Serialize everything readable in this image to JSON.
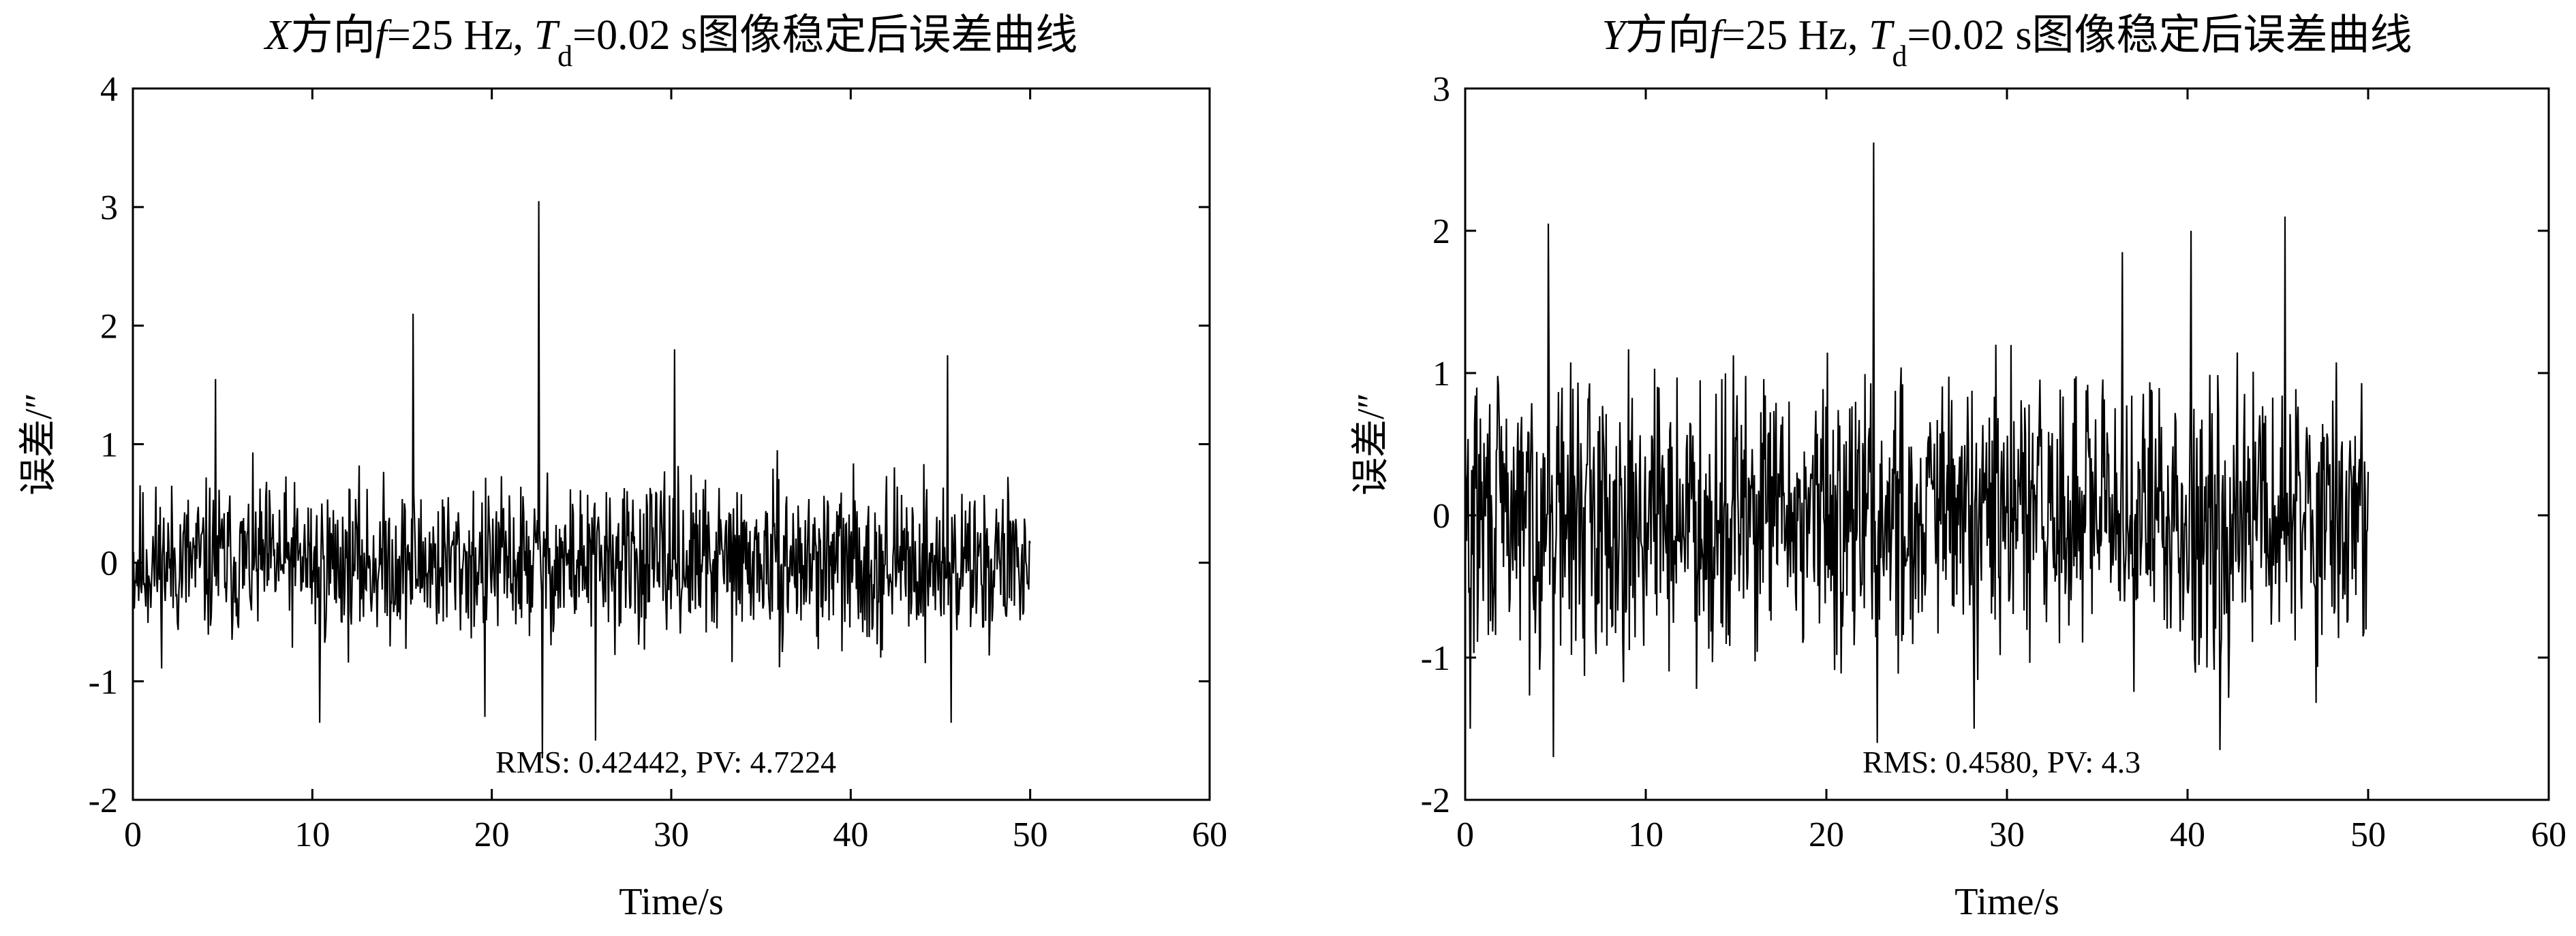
{
  "chart_data": [
    {
      "type": "line",
      "title": {
        "var": "X",
        "pre": "方向",
        "f": "f",
        "mid": "=25 Hz, ",
        "T": "T",
        "sub": "d",
        "post": "=0.02 s图像稳定后误差曲线"
      },
      "xlabel": "Time/s",
      "ylabel": "误差/″",
      "xlim": [
        0,
        60
      ],
      "ylim": [
        -2,
        4
      ],
      "xticks": [
        0,
        10,
        20,
        30,
        40,
        50,
        60
      ],
      "yticks": [
        -2,
        -1,
        0,
        1,
        2,
        3,
        4
      ],
      "xtick_labels": [
        "0",
        "10",
        "20",
        "30",
        "40",
        "50",
        "60"
      ],
      "ytick_labels": [
        "-2",
        "-1",
        "0",
        "1",
        "2",
        "3",
        "4"
      ],
      "annotation": "RMS: 0.42442, PV: 4.7224",
      "line_color": "#000000",
      "x_range": [
        0,
        50
      ],
      "samples": 1250,
      "noise_scale": 0.42,
      "seed": 11,
      "spikes": [
        {
          "x": 15.6,
          "y": 2.1
        },
        {
          "x": 22.6,
          "y": 3.05
        },
        {
          "x": 22.8,
          "y": -1.65
        },
        {
          "x": 25.8,
          "y": -1.5
        },
        {
          "x": 4.6,
          "y": 1.55
        },
        {
          "x": 10.4,
          "y": -1.35
        },
        {
          "x": 45.4,
          "y": 1.75
        },
        {
          "x": 45.6,
          "y": -1.35
        },
        {
          "x": 30.2,
          "y": 1.8
        },
        {
          "x": 19.6,
          "y": -1.3
        }
      ],
      "stats": {
        "rms": 0.42442,
        "pv": 4.7224
      }
    },
    {
      "type": "line",
      "title": {
        "var": "Y",
        "pre": "方向",
        "f": "f",
        "mid": "=25 Hz, ",
        "T": "T",
        "sub": "d",
        "post": "=0.02 s图像稳定后误差曲线"
      },
      "xlabel": "Time/s",
      "ylabel": "误差/″",
      "xlim": [
        0,
        60
      ],
      "ylim": [
        -2,
        3
      ],
      "xticks": [
        0,
        10,
        20,
        30,
        40,
        50,
        60
      ],
      "yticks": [
        -2,
        -1,
        0,
        1,
        2,
        3
      ],
      "xtick_labels": [
        "0",
        "10",
        "20",
        "30",
        "40",
        "50",
        "60"
      ],
      "ytick_labels": [
        "-2",
        "-1",
        "0",
        "1",
        "2",
        "3"
      ],
      "annotation": "RMS: 0.4580, PV: 4.3",
      "line_color": "#000000",
      "x_range": [
        0,
        50
      ],
      "samples": 1250,
      "noise_scale": 0.62,
      "seed": 29,
      "spikes": [
        {
          "x": 22.6,
          "y": 2.62
        },
        {
          "x": 22.8,
          "y": -1.6
        },
        {
          "x": 4.6,
          "y": 2.05
        },
        {
          "x": 4.9,
          "y": -1.7
        },
        {
          "x": 45.4,
          "y": 2.1
        },
        {
          "x": 40.2,
          "y": 2.0
        },
        {
          "x": 41.8,
          "y": -1.65
        },
        {
          "x": 36.4,
          "y": 1.85
        },
        {
          "x": 0.3,
          "y": -1.5
        },
        {
          "x": 28.2,
          "y": -1.5
        }
      ],
      "stats": {
        "rms": 0.458,
        "pv": 4.3
      }
    }
  ]
}
